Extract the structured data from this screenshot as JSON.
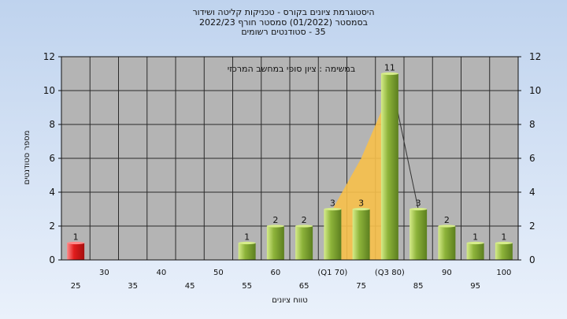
{
  "chart_data": {
    "type": "bar",
    "title_lines": [
      "היסטוגרמת ציונים בקורס - טכניקות קליטה ושידור",
      "בסמסטר (01/2022) סמסטר חורף 2022/23",
      "35 - סטודנטים רשומים"
    ],
    "annotation": "במשימה : ציון סופי במחשב המרכזי",
    "xlabel": "טווח ציונים",
    "ylabel": "מספר סטודנטים",
    "ylim": [
      0,
      12
    ],
    "yticks": [
      0,
      2,
      4,
      6,
      8,
      10,
      12
    ],
    "x_tick_labels": [
      {
        "label": "25",
        "row": 2
      },
      {
        "label": "30",
        "row": 1
      },
      {
        "label": "35",
        "row": 2
      },
      {
        "label": "40",
        "row": 1
      },
      {
        "label": "45",
        "row": 2
      },
      {
        "label": "50",
        "row": 1
      },
      {
        "label": "55",
        "row": 2
      },
      {
        "label": "60",
        "row": 1
      },
      {
        "label": "65",
        "row": 2
      },
      {
        "label": "(Q1 70)",
        "row": 1
      },
      {
        "label": "75",
        "row": 2
      },
      {
        "label": "(Q3 80)",
        "row": 1
      },
      {
        "label": "85",
        "row": 2
      },
      {
        "label": "90",
        "row": 1
      },
      {
        "label": "95",
        "row": 2
      },
      {
        "label": "100",
        "row": 1
      }
    ],
    "values": [
      1,
      0,
      0,
      0,
      0,
      0,
      1,
      2,
      2,
      3,
      3,
      11,
      3,
      2,
      1,
      1
    ],
    "data_labels": [
      "1",
      "",
      "",
      "",
      "",
      "",
      "1",
      "2",
      "2",
      "3",
      "3",
      "11",
      "3",
      "2",
      "1",
      "1"
    ],
    "highlight_category_index": 0,
    "quartile_band": {
      "from_index": 9,
      "to_index": 11,
      "color": "#f7c04a"
    },
    "colors": {
      "plot_bg": "#b4b4b4",
      "bar": "#8db33a",
      "bar_light": "#d6ec8a",
      "fail_bar": "#e21d1d",
      "fail_bar_light": "#ff8a8a",
      "grid": "#2a2a2a"
    },
    "grid": true
  }
}
